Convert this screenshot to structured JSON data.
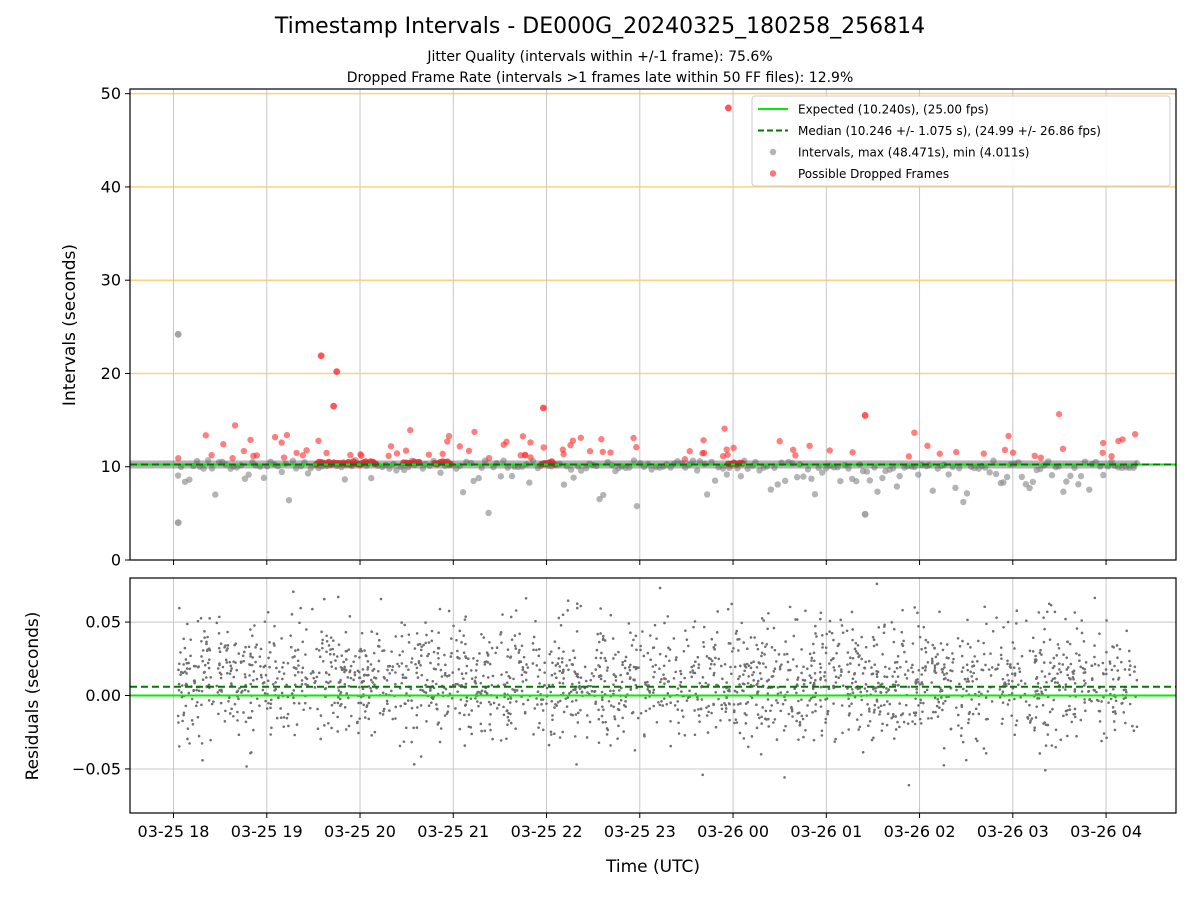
{
  "title": "Timestamp Intervals - DE000G_20240325_180258_256814",
  "subtitle_1": "Jitter Quality (intervals within +/-1 frame): 75.6%",
  "subtitle_2": "Dropped Frame Rate (intervals >1 frames late within 50 FF files): 12.9%",
  "colors": {
    "expected": "#00ee00",
    "median": "#007a00",
    "intervals": "#8c8c8c",
    "dropped": "#ff2a2a",
    "threshold_lines": "#ffd27a",
    "grid": "#c8c8c8",
    "residuals": "#707070"
  },
  "chart_data": [
    {
      "id": "intervals",
      "type": "scatter",
      "xlabel": "",
      "ylabel": "Intervals (seconds)",
      "ylim": [
        0,
        50.5
      ],
      "yticks": [
        0,
        10,
        20,
        30,
        40,
        50
      ],
      "grid": true,
      "legend_position": "top-right",
      "reference_lines": [
        {
          "name": "Expected (10.240s), (25.00 fps)",
          "y": 10.24,
          "style": "solid",
          "color": "#00ee00"
        },
        {
          "name": "Median (10.246 +/- 1.075 s), (24.99 +/- 26.86 fps)",
          "y": 10.246,
          "style": "dashed",
          "color": "#007a00"
        }
      ],
      "threshold_lines": [
        20,
        30,
        40,
        50
      ],
      "series": [
        {
          "name": "Intervals, max (48.471s), min (4.011s)",
          "color": "#8c8c8c",
          "marker": "circle"
        },
        {
          "name": "Possible Dropped Frames",
          "color": "#ff2a2a",
          "marker": "circle"
        }
      ],
      "stats": {
        "max": 48.471,
        "min": 4.011,
        "typical": 10.24
      },
      "notable_points": [
        {
          "x": "2024-03-25 18:03",
          "y": 4.01,
          "series": "Intervals"
        },
        {
          "x": "2024-03-25 18:03",
          "y": 24.2,
          "series": "Intervals"
        },
        {
          "x": "2024-03-25 19:35",
          "y": 21.9,
          "series": "Possible Dropped Frames"
        },
        {
          "x": "2024-03-25 19:45",
          "y": 20.2,
          "series": "Possible Dropped Frames"
        },
        {
          "x": "2024-03-25 19:43",
          "y": 16.5,
          "series": "Possible Dropped Frames"
        },
        {
          "x": "2024-03-25 21:58",
          "y": 16.3,
          "series": "Possible Dropped Frames"
        },
        {
          "x": "2024-03-25 23:57",
          "y": 48.47,
          "series": "Possible Dropped Frames"
        },
        {
          "x": "2024-03-26 01:25",
          "y": 15.5,
          "series": "Possible Dropped Frames"
        },
        {
          "x": "2024-03-26 01:25",
          "y": 4.9,
          "series": "Intervals"
        }
      ],
      "dropped_frame_clusters": [
        {
          "x_start": "2024-03-25 19:32",
          "x_end": "2024-03-25 20:10",
          "y": 10.4
        },
        {
          "x_start": "2024-03-25 20:28",
          "x_end": "2024-03-25 20:38",
          "y": 10.4
        },
        {
          "x_start": "2024-03-25 20:48",
          "x_end": "2024-03-25 20:58",
          "y": 10.4
        },
        {
          "x_start": "2024-03-25 21:57",
          "x_end": "2024-03-25 22:05",
          "y": 10.4
        },
        {
          "x_start": "2024-03-25 23:57",
          "x_end": "2024-03-26 00:06",
          "y": 10.4
        }
      ]
    },
    {
      "id": "residuals",
      "type": "scatter",
      "xlabel": "Time (UTC)",
      "ylabel": "Residuals (seconds)",
      "ylim": [
        -0.08,
        0.08
      ],
      "yticks": [
        -0.05,
        0.0,
        0.05
      ],
      "ytick_labels": [
        "−0.05",
        "0.00",
        "0.05"
      ],
      "grid": true,
      "reference_lines": [
        {
          "y": 0.0,
          "style": "solid",
          "color": "#00ee00"
        },
        {
          "y": 0.006,
          "style": "dashed",
          "color": "#007a00"
        }
      ],
      "residual_spread": {
        "center": 0.01,
        "sd": 0.02
      },
      "x_range": [
        "2024-03-25 17:32",
        "2024-03-26 04:45"
      ],
      "xticks": [
        "2024-03-25 18:00",
        "2024-03-25 19:00",
        "2024-03-25 20:00",
        "2024-03-25 21:00",
        "2024-03-25 22:00",
        "2024-03-25 23:00",
        "2024-03-26 00:00",
        "2024-03-26 01:00",
        "2024-03-26 02:00",
        "2024-03-26 03:00",
        "2024-03-26 04:00"
      ],
      "xtick_labels": [
        "03-25 18",
        "03-25 19",
        "03-25 20",
        "03-25 21",
        "03-25 22",
        "03-25 23",
        "03-26 00",
        "03-26 01",
        "03-26 02",
        "03-26 03",
        "03-26 04"
      ],
      "data_x_range": [
        "2024-03-25 18:03",
        "2024-03-26 04:20"
      ]
    }
  ]
}
